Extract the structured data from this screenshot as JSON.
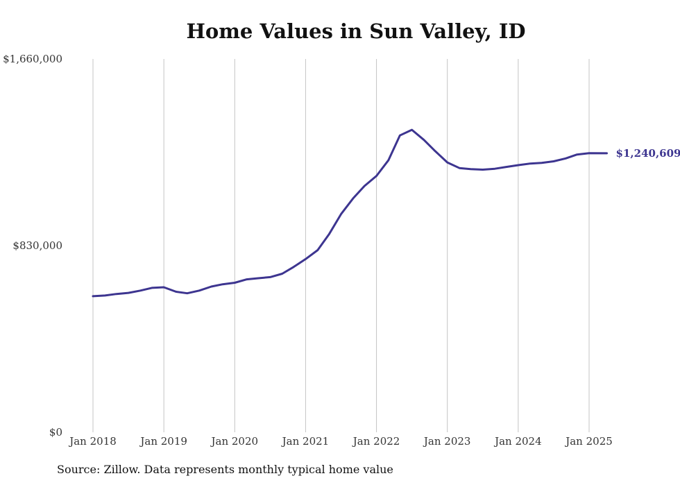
{
  "chart_data": {
    "type": "line",
    "title": "Home Values in Sun Valley, ID",
    "source": "Source: Zillow. Data represents monthly typical home value",
    "ylim": [
      0,
      1660000
    ],
    "yticks": [
      {
        "value": 0,
        "label": "$0"
      },
      {
        "value": 830000,
        "label": "$830,000"
      },
      {
        "value": 1660000,
        "label": "$1,660,000"
      }
    ],
    "xticks": [
      "Jan 2018",
      "Jan 2019",
      "Jan 2020",
      "Jan 2021",
      "Jan 2022",
      "Jan 2023",
      "Jan 2024",
      "Jan 2025"
    ],
    "grid": "vertical",
    "color": "#3d3590",
    "end_label": "$1,240,609",
    "series": [
      {
        "values": [
          [
            2018.0,
            605000
          ],
          [
            2018.17,
            608000
          ],
          [
            2018.33,
            615000
          ],
          [
            2018.5,
            620000
          ],
          [
            2018.67,
            630000
          ],
          [
            2018.83,
            642000
          ],
          [
            2019.0,
            645000
          ],
          [
            2019.17,
            625000
          ],
          [
            2019.33,
            618000
          ],
          [
            2019.5,
            630000
          ],
          [
            2019.67,
            648000
          ],
          [
            2019.83,
            658000
          ],
          [
            2020.0,
            665000
          ],
          [
            2020.17,
            680000
          ],
          [
            2020.33,
            685000
          ],
          [
            2020.5,
            690000
          ],
          [
            2020.67,
            705000
          ],
          [
            2020.83,
            735000
          ],
          [
            2021.0,
            770000
          ],
          [
            2021.17,
            810000
          ],
          [
            2021.33,
            880000
          ],
          [
            2021.5,
            970000
          ],
          [
            2021.67,
            1040000
          ],
          [
            2021.83,
            1095000
          ],
          [
            2022.0,
            1140000
          ],
          [
            2022.17,
            1210000
          ],
          [
            2022.33,
            1320000
          ],
          [
            2022.5,
            1345000
          ],
          [
            2022.67,
            1300000
          ],
          [
            2022.83,
            1250000
          ],
          [
            2023.0,
            1200000
          ],
          [
            2023.17,
            1175000
          ],
          [
            2023.33,
            1170000
          ],
          [
            2023.5,
            1168000
          ],
          [
            2023.67,
            1172000
          ],
          [
            2023.83,
            1180000
          ],
          [
            2024.0,
            1188000
          ],
          [
            2024.17,
            1195000
          ],
          [
            2024.33,
            1198000
          ],
          [
            2024.5,
            1205000
          ],
          [
            2024.67,
            1218000
          ],
          [
            2024.83,
            1235000
          ],
          [
            2025.0,
            1241000
          ],
          [
            2025.25,
            1240609
          ]
        ]
      }
    ]
  }
}
